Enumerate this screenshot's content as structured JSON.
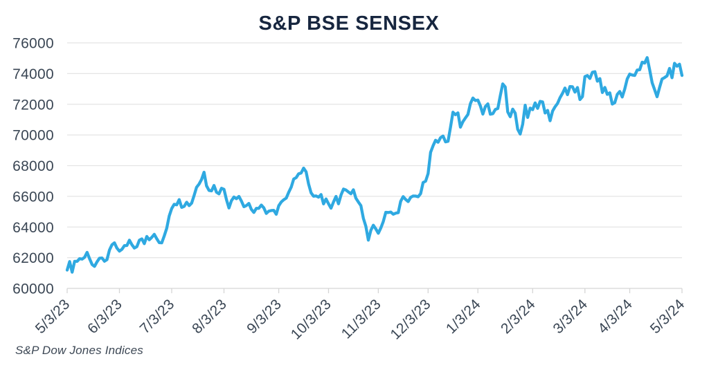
{
  "title": "S&P BSE SENSEX",
  "source": "S&P Dow Jones Indices",
  "colors": {
    "line": "#2FA9E1",
    "title_text": "#17263F",
    "axis_text": "#3A4654",
    "grid": "#E4E4E4",
    "tick": "#D5D5D5",
    "source_text": "#3D4855",
    "background": "#FFFFFF"
  },
  "chart_data": {
    "type": "line",
    "title": "S&P BSE SENSEX",
    "xlabel": "",
    "ylabel": "",
    "ylim": [
      60000,
      76000
    ],
    "y_ticks": [
      76000,
      74000,
      72000,
      70000,
      68000,
      66000,
      64000,
      62000,
      60000
    ],
    "x_tick_labels": [
      "5/3/23",
      "6/3/23",
      "7/3/23",
      "8/3/23",
      "9/3/23",
      "10/3/23",
      "11/3/23",
      "12/3/23",
      "1/3/24",
      "2/3/24",
      "3/3/24",
      "4/3/24",
      "5/3/24"
    ],
    "x_tick_indices": [
      0,
      21,
      42,
      63,
      85,
      105,
      125,
      145,
      165,
      187,
      208,
      226,
      247
    ],
    "grid": "horizontal",
    "legend": "none",
    "series": [
      {
        "name": "S&P BSE SENSEX",
        "values": [
          61193,
          61749,
          61055,
          61764,
          61761,
          61940,
          61905,
          62028,
          62346,
          61933,
          61561,
          61432,
          61730,
          61964,
          61981,
          61773,
          61873,
          62502,
          62846,
          62969,
          62622,
          62429,
          62547,
          62787,
          62793,
          63143,
          62848,
          62626,
          62724,
          63143,
          63228,
          62918,
          63385,
          63169,
          63328,
          63523,
          63238,
          62979,
          62970,
          63416,
          63915,
          64719,
          65205,
          65479,
          65446,
          65786,
          65280,
          65344,
          65617,
          65394,
          65558,
          66061,
          66589,
          66795,
          67097,
          67572,
          66684,
          66384,
          66355,
          66707,
          66267,
          66160,
          66528,
          66459,
          65783,
          65241,
          65721,
          65953,
          65846,
          65996,
          65688,
          65323,
          65401,
          65539,
          65151,
          64949,
          65216,
          65220,
          65433,
          65252,
          64887,
          65033,
          65075,
          65087,
          64831,
          65387,
          65628,
          65780,
          65881,
          66266,
          66599,
          67127,
          67221,
          67467,
          67519,
          67839,
          67597,
          66800,
          66230,
          66009,
          66024,
          65945,
          66118,
          65508,
          65828,
          65512,
          65226,
          65632,
          65996,
          65512,
          66079,
          66473,
          66408,
          66283,
          66167,
          66428,
          65877,
          65630,
          65398,
          64572,
          64049,
          63148,
          63783,
          64113,
          63875,
          63591,
          63935,
          64364,
          64958,
          64942,
          64976,
          64832,
          64905,
          64934,
          65676,
          65982,
          65795,
          65655,
          65930,
          66023,
          66018,
          65970,
          66174,
          66902,
          66988,
          67481,
          68865,
          69296,
          69654,
          69522,
          69826,
          69928,
          69551,
          69585,
          70514,
          71484,
          71315,
          71437,
          70506,
          70865,
          71107,
          71337,
          72038,
          72410,
          72240,
          72272,
          71892,
          71357,
          71847,
          72026,
          71355,
          71386,
          71658,
          71721,
          72568,
          73328,
          73129,
          71501,
          71187,
          71683,
          71424,
          70371,
          70060,
          70701,
          71941,
          71140,
          71752,
          71645,
          72086,
          71731,
          72186,
          72152,
          71428,
          71595,
          70923,
          71555,
          71833,
          72050,
          72426,
          72708,
          73057,
          72623,
          73158,
          73142,
          72790,
          73095,
          72304,
          72500,
          73806,
          73872,
          73677,
          74086,
          74119,
          73503,
          73668,
          72762,
          73097,
          72643,
          72748,
          72012,
          72102,
          72641,
          72832,
          72470,
          72996,
          73651,
          73968,
          73904,
          73877,
          74228,
          74248,
          74742,
          74683,
          75038,
          74245,
          73399,
          72944,
          72489,
          73088,
          73648,
          73738,
          73852,
          74339,
          73730,
          74671,
          74482,
          74611,
          73878
        ]
      }
    ]
  }
}
